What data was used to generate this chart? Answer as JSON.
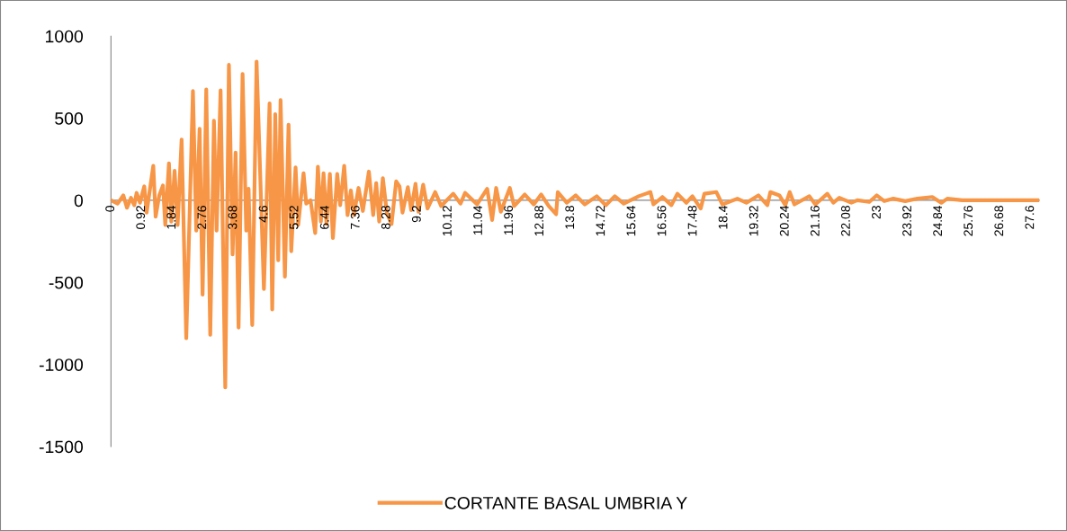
{
  "chart_data": {
    "type": "line",
    "xlim": [
      0,
      27.86
    ],
    "ylim": [
      -1500,
      1000
    ],
    "xticks": [
      0,
      0.92,
      1.84,
      2.76,
      3.68,
      4.6,
      5.52,
      6.44,
      7.36,
      8.28,
      9.2,
      10.12,
      11.04,
      11.96,
      12.88,
      13.8,
      14.72,
      15.64,
      16.56,
      17.48,
      18.4,
      19.32,
      20.24,
      21.16,
      22.08,
      23,
      23.92,
      24.84,
      25.76,
      26.68,
      27.6
    ],
    "yticks": [
      -1500,
      -1000,
      -500,
      0,
      500,
      1000
    ],
    "grid": false,
    "legend": "bottom",
    "marker": "none",
    "line_style": "solid",
    "series": [
      {
        "name": "CORTANTE BASAL UMBRIA Y",
        "color": "#f79646",
        "x": [
          0,
          0.2,
          0.37,
          0.48,
          0.6,
          0.7,
          0.77,
          0.87,
          1.0,
          1.07,
          1.27,
          1.34,
          1.45,
          1.56,
          1.63,
          1.74,
          1.81,
          1.91,
          2.0,
          2.12,
          2.26,
          2.46,
          2.56,
          2.66,
          2.75,
          2.86,
          2.98,
          3.09,
          3.17,
          3.29,
          3.43,
          3.54,
          3.65,
          3.74,
          3.83,
          3.95,
          4.06,
          4.13,
          4.24,
          4.37,
          4.59,
          4.76,
          4.84,
          4.93,
          5.02,
          5.09,
          5.22,
          5.33,
          5.41,
          5.54,
          5.62,
          5.78,
          5.86,
          5.99,
          6.13,
          6.21,
          6.3,
          6.38,
          6.47,
          6.57,
          6.66,
          6.79,
          6.88,
          7.0,
          7.1,
          7.2,
          7.29,
          7.43,
          7.56,
          7.74,
          7.87,
          7.96,
          8.05,
          8.16,
          8.28,
          8.42,
          8.56,
          8.66,
          8.75,
          8.91,
          9.01,
          9.14,
          9.23,
          9.37,
          9.5,
          9.73,
          9.91,
          10.27,
          10.49,
          10.63,
          10.99,
          11.29,
          11.44,
          11.56,
          11.7,
          11.97,
          12.1,
          12.42,
          12.69,
          12.91,
          13.14,
          13.36,
          13.41,
          13.68,
          13.95,
          14.22,
          14.58,
          14.85,
          15.12,
          15.39,
          15.84,
          16.05,
          16.19,
          16.28,
          16.55,
          16.82,
          17.0,
          17.27,
          17.45,
          17.7,
          17.81,
          18.17,
          18.35,
          18.8,
          19.07,
          19.43,
          19.7,
          19.79,
          20.06,
          20.24,
          20.37,
          20.51,
          20.96,
          21.14,
          21.5,
          21.68,
          21.86,
          22.22,
          22.4,
          22.76,
          22.98,
          23.21,
          23.48,
          23.84,
          24.2,
          24.65,
          24.92,
          25.1,
          25.55,
          25.82,
          27.84
        ],
        "values": [
          0,
          -20,
          30,
          -45,
          15,
          -30,
          45,
          -15,
          85,
          -75,
          210,
          -100,
          30,
          90,
          -150,
          225,
          -130,
          180,
          -150,
          370,
          -840,
          665,
          -185,
          435,
          -575,
          675,
          -820,
          485,
          -185,
          670,
          -1140,
          825,
          -330,
          290,
          -775,
          770,
          -185,
          70,
          -760,
          845,
          -540,
          590,
          -665,
          525,
          -365,
          610,
          -465,
          460,
          -310,
          200,
          -150,
          165,
          -20,
          0,
          -200,
          205,
          -130,
          165,
          -145,
          160,
          -230,
          160,
          -30,
          210,
          -90,
          60,
          -90,
          75,
          -65,
          175,
          -90,
          105,
          -130,
          135,
          -75,
          -145,
          115,
          85,
          -75,
          80,
          -60,
          100,
          -70,
          95,
          -50,
          50,
          -35,
          40,
          -20,
          45,
          -25,
          70,
          -120,
          75,
          -70,
          75,
          -35,
          35,
          -25,
          35,
          -35,
          -85,
          50,
          -15,
          30,
          -25,
          25,
          -30,
          25,
          -20,
          25,
          40,
          50,
          -25,
          20,
          -30,
          40,
          -15,
          25,
          -50,
          40,
          50,
          -25,
          10,
          -15,
          30,
          -30,
          50,
          30,
          -30,
          50,
          -25,
          25,
          -25,
          40,
          -15,
          15,
          -15,
          0,
          -10,
          30,
          -5,
          10,
          -5,
          10,
          20,
          -15,
          10,
          0,
          0,
          0
        ]
      }
    ]
  }
}
